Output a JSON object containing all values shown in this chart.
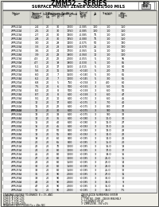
{
  "title": "ZMM52 – SERIES",
  "subtitle": "SURFACE MOUNT ZENER DIODES/500 MILS",
  "rows": [
    [
      "ZMM5221A",
      "2.4",
      "20",
      "30",
      "1200",
      "-0.085",
      "100",
      "1.0",
      "150"
    ],
    [
      "ZMM5222A",
      "2.5",
      "20",
      "30",
      "1250",
      "-0.085",
      "100",
      "1.0",
      "150"
    ],
    [
      "ZMM5223A",
      "2.7",
      "20",
      "30",
      "1300",
      "-0.085",
      "75",
      "1.0",
      "150"
    ],
    [
      "ZMM5224A",
      "2.8",
      "20",
      "30",
      "1350",
      "-0.080",
      "75",
      "1.0",
      "150"
    ],
    [
      "ZMM5225A",
      "3.0",
      "20",
      "29",
      "1400",
      "-0.075",
      "50",
      "1.0",
      "130"
    ],
    [
      "ZMM5226A",
      "3.3",
      "20",
      "28",
      "1600",
      "-0.070",
      "25",
      "1.0",
      "120"
    ],
    [
      "ZMM5227A",
      "3.6",
      "20",
      "24",
      "1700",
      "-0.065",
      "15",
      "1.0",
      "110"
    ],
    [
      "ZMM5228A",
      "3.9",
      "20",
      "23",
      "1900",
      "-0.060",
      "10",
      "1.0",
      "100"
    ],
    [
      "ZMM5229A",
      "4.3",
      "20",
      "22",
      "2000",
      "-0.055",
      "5",
      "1.0",
      "95"
    ],
    [
      "ZMM5230A",
      "4.7",
      "20",
      "19",
      "1900",
      "-0.030",
      "5",
      "1.0",
      "85"
    ],
    [
      "ZMM5231A",
      "5.1",
      "20",
      "17",
      "1600",
      "-0.015",
      "5",
      "1.0",
      "80"
    ],
    [
      "ZMM5232A",
      "5.6",
      "20",
      "11",
      "1600",
      "+0.020",
      "5",
      "2.0",
      "70"
    ],
    [
      "ZMM5233A",
      "6.0",
      "20",
      "7",
      "1600",
      "+0.040",
      "5",
      "3.0",
      "65"
    ],
    [
      "ZMM5234A",
      "6.2",
      "20",
      "7",
      "1000",
      "+0.045",
      "5",
      "3.0",
      "65"
    ],
    [
      "ZMM5235A",
      "6.8",
      "20",
      "5",
      "750",
      "+0.058",
      "3",
      "4.0",
      "60"
    ],
    [
      "ZMM5236A",
      "7.5",
      "20",
      "6",
      "500",
      "+0.065",
      "3",
      "5.0",
      "55"
    ],
    [
      "ZMM5237A",
      "8.2",
      "20",
      "8",
      "500",
      "+0.068",
      "3",
      "6.0",
      "50"
    ],
    [
      "ZMM5238A",
      "8.7",
      "20",
      "8",
      "600",
      "+0.068",
      "3",
      "6.0",
      "47"
    ],
    [
      "ZMM5239A",
      "9.1",
      "20",
      "10",
      "600",
      "+0.070",
      "3",
      "6.0",
      "45"
    ],
    [
      "ZMM5240A",
      "10",
      "20",
      "17",
      "600",
      "+0.075",
      "3",
      "7.0",
      "40"
    ],
    [
      "ZMM5241A",
      "11",
      "20",
      "22",
      "600",
      "+0.075",
      "3",
      "8.0",
      "37"
    ],
    [
      "ZMM5242A",
      "12",
      "20",
      "30",
      "600",
      "+0.075",
      "3",
      "9.0",
      "35"
    ],
    [
      "ZMM5243A",
      "13",
      "20",
      "33",
      "600",
      "+0.075",
      "3",
      "9.0",
      "32"
    ],
    [
      "ZMM5244A",
      "14",
      "20",
      "36",
      "600",
      "+0.080",
      "3",
      "10.0",
      "30"
    ],
    [
      "ZMM5245A",
      "15",
      "20",
      "40",
      "600",
      "+0.080",
      "3",
      "11.0",
      "27"
    ],
    [
      "ZMM5246A",
      "16",
      "20",
      "45",
      "600",
      "+0.083",
      "3",
      "12.0",
      "25"
    ],
    [
      "ZMM5247A",
      "17",
      "20",
      "50",
      "800",
      "+0.083",
      "3",
      "13.0",
      "23"
    ],
    [
      "ZMM5248A",
      "18",
      "20",
      "55",
      "800",
      "+0.083",
      "3",
      "14.0",
      "22"
    ],
    [
      "ZMM5249A",
      "19",
      "20",
      "60",
      "800",
      "+0.085",
      "3",
      "14.0",
      "21"
    ],
    [
      "ZMM5250A",
      "20",
      "20",
      "65",
      "800",
      "+0.085",
      "3",
      "15.0",
      "20"
    ],
    [
      "ZMM5251A",
      "22",
      "20",
      "70",
      "1000",
      "+0.085",
      "3",
      "16.0",
      "18"
    ],
    [
      "ZMM5252A",
      "24",
      "20",
      "80",
      "1000",
      "+0.085",
      "3",
      "17.0",
      "17"
    ],
    [
      "ZMM5253A",
      "25",
      "20",
      "80",
      "1000",
      "+0.085",
      "3",
      "19.0",
      "16"
    ],
    [
      "ZMM5254A",
      "27",
      "20",
      "80",
      "1000",
      "+0.085",
      "3",
      "21.0",
      "15"
    ],
    [
      "ZMM5255A",
      "28",
      "20",
      "80",
      "1500",
      "+0.085",
      "3",
      "22.0",
      "14"
    ],
    [
      "ZMM5256A",
      "30",
      "20",
      "80",
      "1500",
      "+0.085",
      "3",
      "23.0",
      "13"
    ],
    [
      "ZMM5257A",
      "33",
      "20",
      "80",
      "1500",
      "+0.085",
      "3",
      "25.0",
      "12"
    ],
    [
      "ZMM5258A",
      "36",
      "20",
      "90",
      "2000",
      "+0.085",
      "3",
      "27.0",
      "11"
    ],
    [
      "ZMM5259A",
      "39",
      "20",
      "90",
      "2000",
      "+0.085",
      "3",
      "30.0",
      "10"
    ],
    [
      "ZMM5260A",
      "43",
      "20",
      "90",
      "2000",
      "+0.085",
      "3",
      "33.0",
      "9"
    ],
    [
      "ZMM5261A",
      "47",
      "20",
      "90",
      "2000",
      "+0.085",
      "3",
      "35.0",
      "8"
    ],
    [
      "ZMM5262A",
      "51",
      "20",
      "90",
      "2000",
      "+0.085",
      "3",
      "39.0",
      "7.5"
    ]
  ],
  "col_labels_line1": [
    "Device",
    "Nominal",
    "Test",
    "Maximum Zener Impedance",
    "",
    "Typical",
    "Maximum Reverse",
    "",
    "Maximum"
  ],
  "col_labels_line2": [
    "Type",
    "Zener",
    "Current",
    "ZzT at IzT",
    "Zik at",
    "Temperature",
    "Leakage Current",
    "",
    "Regulator"
  ],
  "col_labels_line3": [
    "",
    "Voltage",
    "IzT",
    "Ω",
    "Izk=.25mA",
    "Coefficient",
    "Ir  Test-Voltage",
    "",
    "Current"
  ],
  "col_labels_line4": [
    "",
    "Vz at IzT",
    "mA",
    "",
    "Ω",
    "%/°C",
    "    Volts",
    "",
    "mA"
  ],
  "col_labels_line5": [
    "",
    "Volts",
    "",
    "",
    "",
    "",
    "μA",
    "",
    ""
  ],
  "highlight_row": "ZMM5242A",
  "footer_left": [
    "STANDARD VOLTAGE TOLERANCE: B = 2%, AND:",
    "SUFFIX 'A' FOR ±1%",
    "SUFFIX 'B' FOR ±2%",
    "SUFFIX 'C' FOR ±5%",
    "SUFFIX 'D' FOR ±10%",
    "MEASURED WITH PULSES Tp = 40m SEC"
  ],
  "footer_right": [
    "ZENER DIODE NUMBERING SYSTEM",
    "(Note 3)",
    "1° TYPE NO.: ZMM – ZENER MINI MELF",
    "2° TOLERANCE OR VZ",
    "3° ZMM5259B – 39V ±2%"
  ],
  "bg_color": "#e8e8e0"
}
